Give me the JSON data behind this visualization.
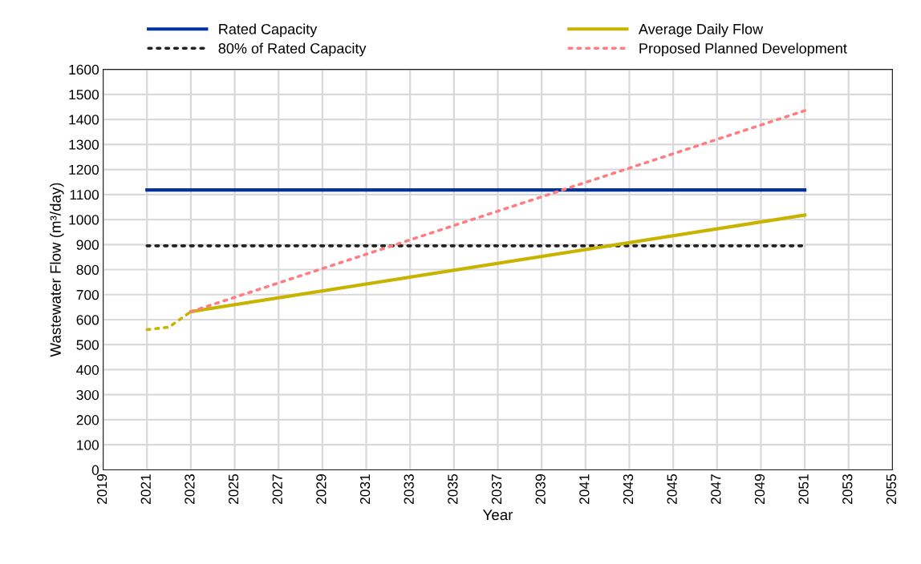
{
  "chart_data": {
    "type": "line",
    "xlabel": "Year",
    "ylabel": "Wastewater Flow (m³/day)",
    "xlim": [
      2019,
      2055
    ],
    "xticks": [
      2019,
      2021,
      2023,
      2025,
      2027,
      2029,
      2031,
      2033,
      2035,
      2037,
      2039,
      2041,
      2043,
      2045,
      2047,
      2049,
      2051,
      2053,
      2055
    ],
    "ylim": [
      0,
      1600
    ],
    "yticks": [
      0,
      100,
      200,
      300,
      400,
      500,
      600,
      700,
      800,
      900,
      1000,
      1100,
      1200,
      1300,
      1400,
      1500,
      1600
    ],
    "grid": true,
    "legend": "top",
    "marker": "none",
    "series": [
      {
        "name": "Rated Capacity",
        "color": "#0033a0",
        "line_style": "solid",
        "x": [
          2021,
          2051
        ],
        "values": [
          1118,
          1118
        ]
      },
      {
        "name": "80% of Rated Capacity",
        "color": "#222222",
        "line_style": "dotted",
        "x": [
          2021,
          2051
        ],
        "values": [
          895,
          895
        ]
      },
      {
        "name": "Average Daily Flow",
        "color": "#c8b400",
        "line_style": "solid",
        "x": [
          2023,
          2051
        ],
        "values": [
          632,
          1018
        ]
      },
      {
        "name": "Proposed Planned Development",
        "color": "#ff7c80",
        "line_style": "dotted",
        "x": [
          2023,
          2051
        ],
        "values": [
          632,
          1435
        ]
      },
      {
        "color": "#c8b400",
        "line_style": "dotted",
        "x": [
          2021,
          2022,
          2023
        ],
        "values": [
          560,
          570,
          632
        ]
      }
    ]
  }
}
